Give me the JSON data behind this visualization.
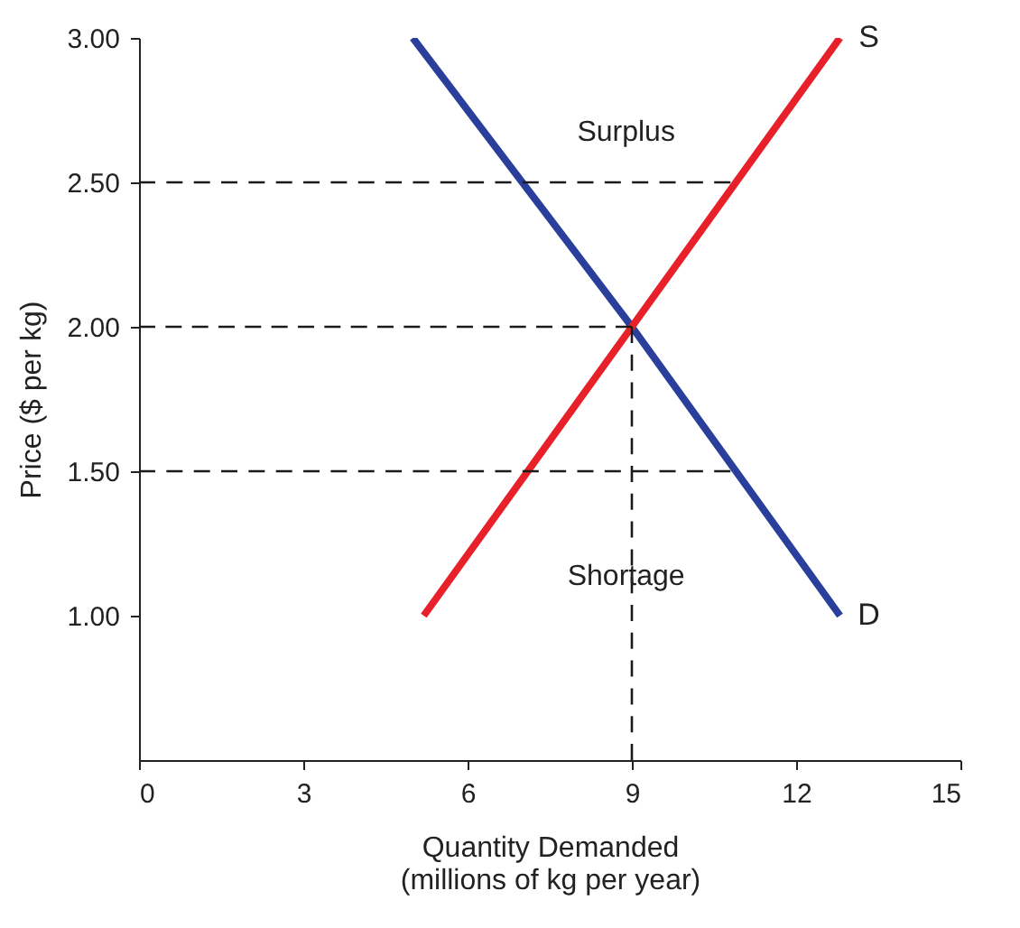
{
  "chart_data": {
    "type": "line",
    "xlabel": "Quantity Demanded\n(millions of kg per year)",
    "ylabel": "Price ($ per kg)",
    "xlim": [
      0,
      15
    ],
    "xticks": [
      0,
      3,
      6,
      9,
      12,
      15
    ],
    "ylim": [
      0.5,
      3
    ],
    "yticks": [
      {
        "value": 1,
        "label": "1.00"
      },
      {
        "value": 1.5,
        "label": "1.50"
      },
      {
        "value": 2,
        "label": "2.00"
      },
      {
        "value": 2.5,
        "label": "2.50"
      },
      {
        "value": 3,
        "label": "3.00"
      }
    ],
    "grid": false,
    "legend": false,
    "marker": "none",
    "series": [
      {
        "name": "D",
        "color": "#2a3f9c",
        "x": [
          5,
          9,
          12.8
        ],
        "values": [
          3,
          2,
          1
        ],
        "line_style": "solid"
      },
      {
        "name": "S",
        "color": "#e8202a",
        "x": [
          5.2,
          9,
          12.8
        ],
        "values": [
          1,
          2,
          3
        ],
        "line_style": "solid"
      },
      {
        "color": "#1a1a1a",
        "x": [
          0,
          10.8
        ],
        "values": [
          2.5,
          2.5
        ],
        "line_style": "dashed"
      },
      {
        "color": "#1a1a1a",
        "x": [
          0,
          9
        ],
        "values": [
          2,
          2
        ],
        "line_style": "dashed"
      },
      {
        "color": "#1a1a1a",
        "x": [
          0,
          10.8
        ],
        "values": [
          1.5,
          1.5
        ],
        "line_style": "dashed"
      },
      {
        "color": "#1a1a1a",
        "x": [
          9,
          9
        ],
        "values": [
          0.5,
          2
        ],
        "line_style": "dashed"
      }
    ],
    "annotations": [
      "Surplus",
      "Shortage"
    ]
  }
}
